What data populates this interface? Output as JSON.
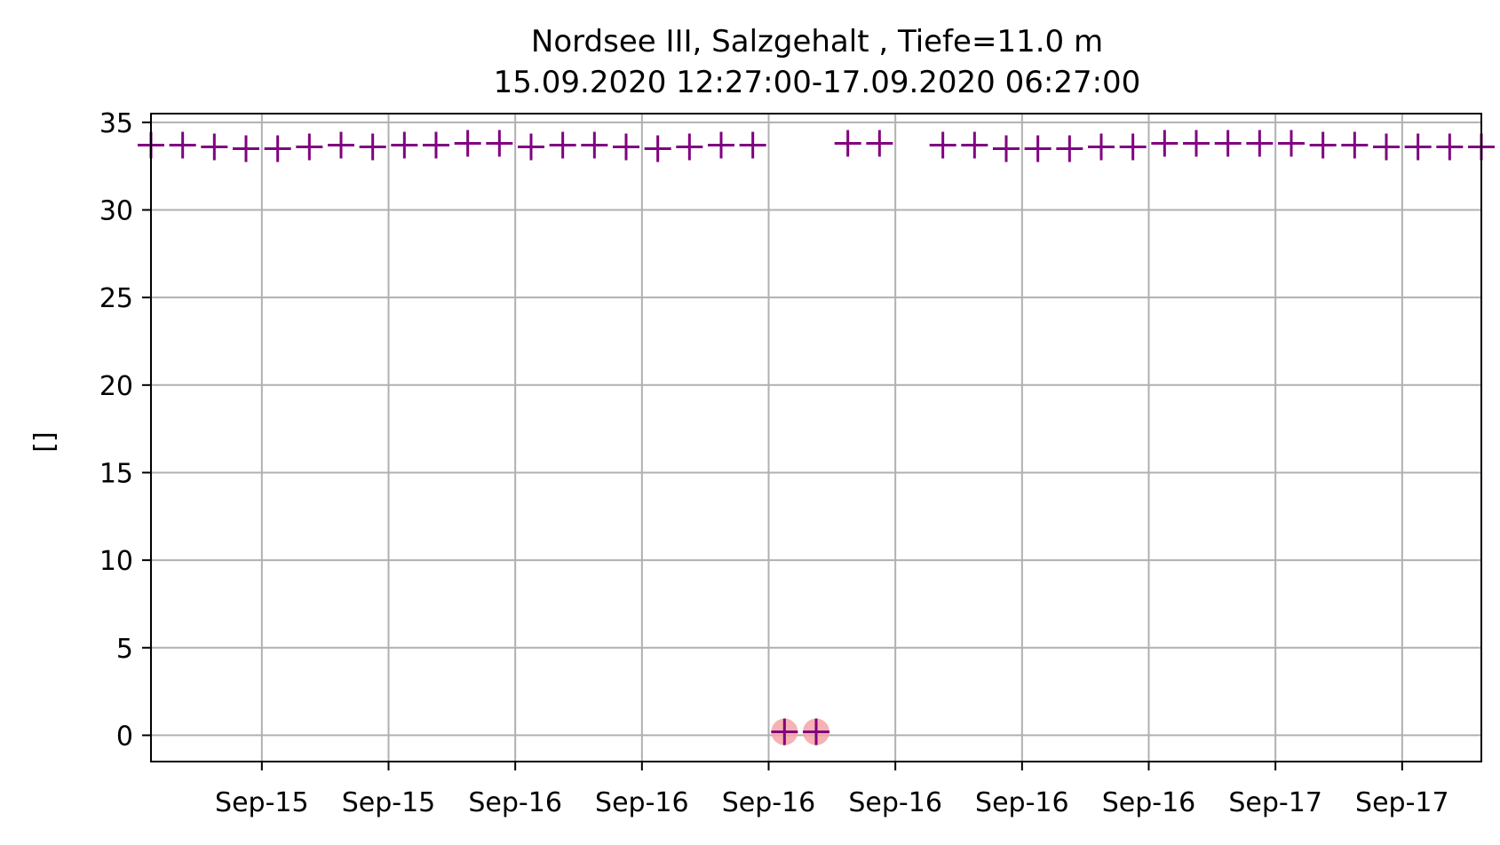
{
  "chart_data": {
    "type": "scatter",
    "title_lines": [
      "Nordsee III, Salzgehalt , Tiefe=11.0 m",
      "15.09.2020 12:27:00-17.09.2020 06:27:00"
    ],
    "xlabel": "",
    "ylabel": "[]",
    "x_unit": "hours since 2020-09-15 12:27",
    "xlim": [
      0,
      42
    ],
    "ylim": [
      -1.5,
      35.5
    ],
    "yticks": [
      0,
      5,
      10,
      15,
      20,
      25,
      30,
      35
    ],
    "xticks": [
      {
        "x": 3.5,
        "label": "Sep-15"
      },
      {
        "x": 7.5,
        "label": "Sep-15"
      },
      {
        "x": 11.5,
        "label": "Sep-16"
      },
      {
        "x": 15.5,
        "label": "Sep-16"
      },
      {
        "x": 19.5,
        "label": "Sep-16"
      },
      {
        "x": 23.5,
        "label": "Sep-16"
      },
      {
        "x": 27.5,
        "label": "Sep-16"
      },
      {
        "x": 31.5,
        "label": "Sep-16"
      },
      {
        "x": 35.5,
        "label": "Sep-17"
      },
      {
        "x": 39.5,
        "label": "Sep-17"
      }
    ],
    "grid": true,
    "series": [
      {
        "name": "Salzgehalt",
        "marker": "plus",
        "color": "#800080",
        "points": [
          [
            0,
            33.7
          ],
          [
            1,
            33.7
          ],
          [
            2,
            33.6
          ],
          [
            3,
            33.5
          ],
          [
            4,
            33.5
          ],
          [
            5,
            33.6
          ],
          [
            6,
            33.7
          ],
          [
            7,
            33.6
          ],
          [
            8,
            33.7
          ],
          [
            9,
            33.7
          ],
          [
            10,
            33.8
          ],
          [
            11,
            33.8
          ],
          [
            12,
            33.6
          ],
          [
            13,
            33.7
          ],
          [
            14,
            33.7
          ],
          [
            15,
            33.6
          ],
          [
            16,
            33.5
          ],
          [
            17,
            33.6
          ],
          [
            18,
            33.7
          ],
          [
            19,
            33.7
          ],
          [
            20,
            0.2
          ],
          [
            21,
            0.2
          ],
          [
            22,
            33.8
          ],
          [
            23,
            33.8
          ],
          [
            25,
            33.7
          ],
          [
            26,
            33.7
          ],
          [
            27,
            33.5
          ],
          [
            28,
            33.5
          ],
          [
            29,
            33.5
          ],
          [
            30,
            33.6
          ],
          [
            31,
            33.6
          ],
          [
            32,
            33.8
          ],
          [
            33,
            33.8
          ],
          [
            34,
            33.8
          ],
          [
            35,
            33.8
          ],
          [
            36,
            33.8
          ],
          [
            37,
            33.7
          ],
          [
            38,
            33.7
          ],
          [
            39,
            33.6
          ],
          [
            40,
            33.6
          ],
          [
            41,
            33.6
          ],
          [
            42,
            33.6
          ]
        ]
      }
    ],
    "flagged_points": [
      [
        20,
        0.2
      ],
      [
        21,
        0.2
      ]
    ],
    "flag_color": "#f4a4a4",
    "grid_color": "#b0b0b0",
    "axis_color": "#000000"
  }
}
